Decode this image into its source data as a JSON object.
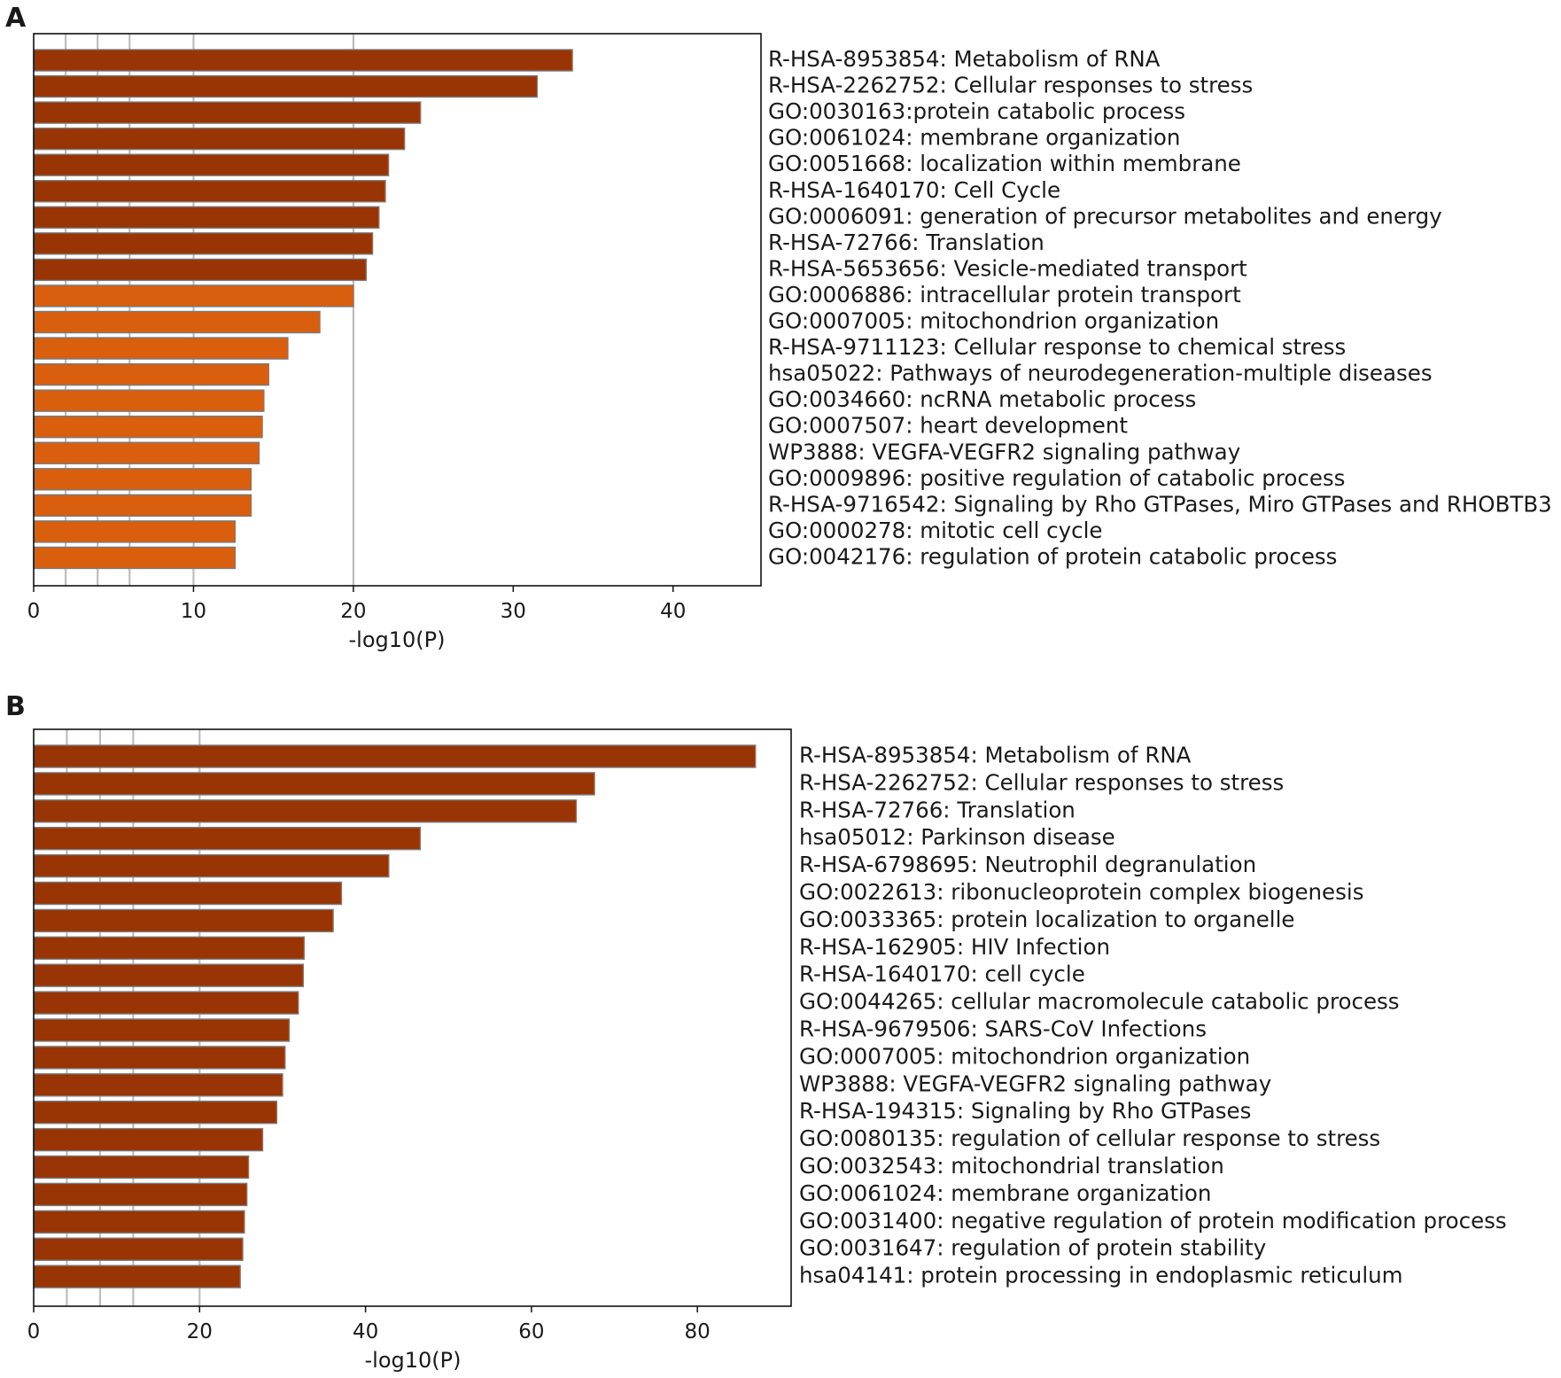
{
  "chart_data": [
    {
      "panel": "A",
      "type": "bar",
      "orientation": "horizontal",
      "xlabel": "-log10(P)",
      "xlim": [
        0,
        45.5
      ],
      "xticks": [
        0,
        10,
        20,
        30,
        40
      ],
      "gridlines": [
        2,
        4,
        6,
        10,
        20
      ],
      "categories": [
        "R-HSA-8953854: Metabolism of RNA",
        "R-HSA-2262752: Cellular responses to stress",
        "GO:0030163:protein catabolic process",
        "GO:0061024: membrane organization",
        "GO:0051668: localization within membrane",
        "R-HSA-1640170: Cell Cycle",
        "GO:0006091: generation of precursor metabolites and energy",
        "R-HSA-72766: Translation",
        "R-HSA-5653656: Vesicle-mediated transport",
        "GO:0006886: intracellular protein transport",
        "GO:0007005: mitochondrion organization",
        "R-HSA-9711123: Cellular response to chemical stress",
        "hsa05022: Pathways of neurodegeneration-multiple diseases",
        "GO:0034660: ncRNA metabolic process",
        "GO:0007507: heart development",
        "WP3888: VEGFA-VEGFR2 signaling pathway",
        "GO:0009896: positive regulation of catabolic process",
        "R-HSA-9716542: Signaling by Rho GTPases, Miro GTPases and RHOBTB3",
        "GO:0000278: mitotic cell cycle",
        "GO:0042176: regulation of protein catabolic process"
      ],
      "values": [
        33.7,
        31.5,
        24.2,
        23.2,
        22.2,
        22.0,
        21.6,
        21.2,
        20.8,
        20.0,
        17.9,
        15.9,
        14.7,
        14.4,
        14.3,
        14.1,
        13.6,
        13.6,
        12.6,
        12.6
      ],
      "colors": [
        "#993404",
        "#993404",
        "#993404",
        "#993404",
        "#993404",
        "#993404",
        "#993404",
        "#993404",
        "#993404",
        "#d95f0e",
        "#d95f0e",
        "#d95f0e",
        "#d95f0e",
        "#d95f0e",
        "#d95f0e",
        "#d95f0e",
        "#d95f0e",
        "#d95f0e",
        "#d95f0e",
        "#d95f0e"
      ]
    },
    {
      "panel": "B",
      "type": "bar",
      "orientation": "horizontal",
      "xlabel": "-log10(P)",
      "xlim": [
        0,
        91.3
      ],
      "xticks": [
        0,
        20,
        40,
        60,
        80
      ],
      "gridlines": [
        4,
        8,
        12,
        20
      ],
      "categories": [
        "R-HSA-8953854: Metabolism of RNA",
        "R-HSA-2262752: Cellular responses to stress",
        "R-HSA-72766: Translation",
        "hsa05012: Parkinson disease",
        "R-HSA-6798695: Neutrophil degranulation",
        "GO:0022613: ribonucleoprotein complex biogenesis",
        "GO:0033365: protein localization to organelle",
        "R-HSA-162905: HIV Infection",
        "R-HSA-1640170: cell cycle",
        "GO:0044265: cellular macromolecule catabolic process",
        "R-HSA-9679506: SARS-CoV Infections",
        "GO:0007005: mitochondrion organization",
        "WP3888: VEGFA-VEGFR2 signaling pathway",
        "R-HSA-194315: Signaling by Rho GTPases",
        "GO:0080135: regulation of cellular response to stress",
        "GO:0032543:  mitochondrial translation",
        "GO:0061024: membrane organization",
        "GO:0031400: negative regulation of protein modification process",
        "GO:0031647: regulation of protein stability",
        "hsa04141: protein processing in endoplasmic reticulum"
      ],
      "values": [
        87.0,
        67.6,
        65.4,
        46.6,
        42.8,
        37.1,
        36.1,
        32.6,
        32.5,
        31.9,
        30.8,
        30.3,
        30.0,
        29.3,
        27.6,
        25.9,
        25.7,
        25.4,
        25.2,
        24.9
      ],
      "colors": [
        "#993404",
        "#993404",
        "#993404",
        "#993404",
        "#993404",
        "#993404",
        "#993404",
        "#993404",
        "#993404",
        "#993404",
        "#993404",
        "#993404",
        "#993404",
        "#993404",
        "#993404",
        "#993404",
        "#993404",
        "#993404",
        "#993404",
        "#993404"
      ]
    }
  ]
}
